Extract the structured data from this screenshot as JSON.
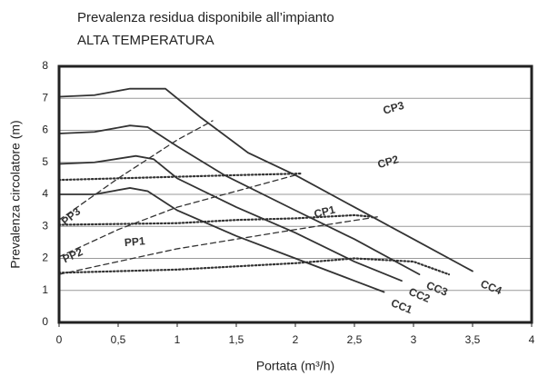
{
  "chart_data": {
    "type": "line",
    "title": "Prevalenza residua disponibile all’impianto",
    "subtitle": "ALTA TEMPERATURA",
    "x_label": "Portata (m³/h)",
    "y_label": "Prevalenza circolatore (m)",
    "xlim": [
      0,
      4
    ],
    "ylim": [
      0,
      8
    ],
    "xticks": [
      0,
      {
        "value": 0.5,
        "label": "0,5"
      },
      1,
      {
        "value": 1.5,
        "label": "1,5"
      },
      2,
      {
        "value": 2.5,
        "label": "2,5"
      },
      3,
      {
        "value": 3.5,
        "label": "3,5"
      },
      4
    ],
    "yticks": [
      0,
      1,
      2,
      3,
      4,
      5,
      6,
      7,
      8
    ],
    "grid": true,
    "series": [
      {
        "name": "CC4",
        "color": "#333333",
        "style": "solid",
        "x": [
          0,
          0.3,
          0.6,
          0.9,
          1.2,
          1.6,
          2.0,
          2.5,
          3.0,
          3.5
        ],
        "values": [
          7.05,
          7.1,
          7.3,
          7.3,
          6.4,
          5.3,
          4.6,
          3.6,
          2.6,
          1.6
        ]
      },
      {
        "name": "CC3",
        "color": "#333333",
        "style": "solid",
        "x": [
          0,
          0.3,
          0.6,
          0.75,
          1.0,
          1.4,
          2.0,
          2.5,
          3.05
        ],
        "values": [
          5.9,
          5.95,
          6.15,
          6.1,
          5.5,
          4.6,
          3.5,
          2.6,
          1.5
        ]
      },
      {
        "name": "CC2",
        "color": "#333333",
        "style": "solid",
        "x": [
          0,
          0.3,
          0.65,
          0.8,
          1.0,
          1.5,
          2.0,
          2.5,
          2.9
        ],
        "values": [
          4.95,
          5.0,
          5.2,
          5.1,
          4.5,
          3.6,
          2.8,
          1.9,
          1.3
        ]
      },
      {
        "name": "CC1",
        "color": "#333333",
        "style": "solid",
        "x": [
          0,
          0.3,
          0.6,
          0.75,
          1.0,
          1.5,
          2.0,
          2.5,
          2.75
        ],
        "values": [
          4.0,
          4.0,
          4.2,
          4.1,
          3.5,
          2.7,
          2.0,
          1.3,
          0.95
        ]
      },
      {
        "name": "CP3",
        "color": "#333333",
        "style": "dotted",
        "x": [
          0,
          0.5,
          1.0,
          1.5,
          2.05
        ],
        "values": [
          4.45,
          4.5,
          4.55,
          4.6,
          4.65
        ]
      },
      {
        "name": "CP2",
        "color": "#333333",
        "style": "dotted",
        "x": [
          0,
          1.0,
          1.5,
          2.0,
          2.5,
          2.65
        ],
        "values": [
          3.05,
          3.1,
          3.2,
          3.25,
          3.35,
          3.3
        ]
      },
      {
        "name": "CP1",
        "color": "#333333",
        "style": "dotted",
        "x": [
          0,
          1.0,
          2.0,
          2.5,
          3.0,
          3.3
        ],
        "values": [
          1.55,
          1.65,
          1.85,
          2.0,
          1.9,
          1.5
        ]
      },
      {
        "name": "PP3",
        "color": "#333333",
        "style": "dashed",
        "x": [
          0,
          0.5,
          1.0,
          1.3
        ],
        "values": [
          3.2,
          4.5,
          5.7,
          6.3
        ]
      },
      {
        "name": "PP2",
        "color": "#333333",
        "style": "dashed",
        "x": [
          0,
          0.5,
          1.0,
          1.5,
          2.0
        ],
        "values": [
          2.05,
          2.9,
          3.6,
          4.1,
          4.6
        ]
      },
      {
        "name": "PP1",
        "color": "#333333",
        "style": "dashed",
        "x": [
          0,
          0.5,
          1.0,
          2.0,
          2.7
        ],
        "values": [
          1.5,
          1.9,
          2.3,
          2.9,
          3.3
        ]
      }
    ]
  }
}
